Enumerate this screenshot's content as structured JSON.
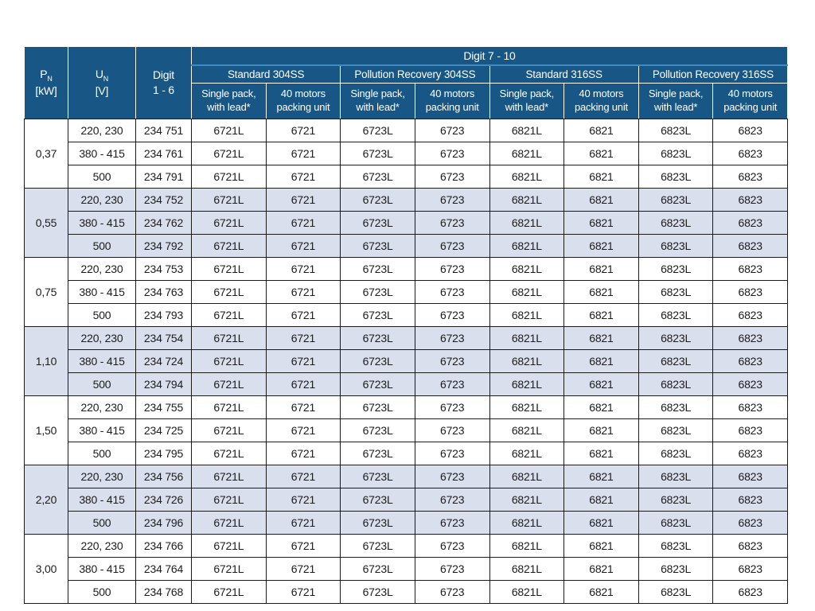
{
  "colors": {
    "header_bg": "#185685",
    "header_text": "#ffffff",
    "accent_line": "#3c8bc4",
    "row_shaded_bg": "#dadfee",
    "row_plain_bg": "#ffffff",
    "grid_border": "#1a1a1a",
    "body_text": "#1c1c1c"
  },
  "header": {
    "power": {
      "symbol": "P",
      "subscript": "N",
      "unit": "[kW]"
    },
    "voltage": {
      "symbol": "U",
      "subscript": "N",
      "unit": "[V]"
    },
    "digit_1_6": "Digit\n1 - 6",
    "digit_span": "Digit 7 - 10",
    "groups": [
      "Standard 304SS",
      "Pollution Recovery 304SS",
      "Standard 316SS",
      "Pollution Recovery 316SS"
    ],
    "subcolumns": [
      "Single pack,\nwith lead*",
      "40 motors\npacking unit"
    ]
  },
  "table": {
    "codes_per_row": [
      "6721L",
      "6721",
      "6723L",
      "6723",
      "6821L",
      "6821",
      "6823L",
      "6823"
    ],
    "groups": [
      {
        "power": "0,37",
        "rows": [
          {
            "voltage": "220, 230",
            "digit16": "234 751"
          },
          {
            "voltage": "380 - 415",
            "digit16": "234 761"
          },
          {
            "voltage": "500",
            "digit16": "234 791"
          }
        ]
      },
      {
        "power": "0,55",
        "rows": [
          {
            "voltage": "220, 230",
            "digit16": "234 752"
          },
          {
            "voltage": "380 - 415",
            "digit16": "234 762"
          },
          {
            "voltage": "500",
            "digit16": "234 792"
          }
        ]
      },
      {
        "power": "0,75",
        "rows": [
          {
            "voltage": "220, 230",
            "digit16": "234 753"
          },
          {
            "voltage": "380 - 415",
            "digit16": "234 763"
          },
          {
            "voltage": "500",
            "digit16": "234 793"
          }
        ]
      },
      {
        "power": "1,10",
        "rows": [
          {
            "voltage": "220, 230",
            "digit16": "234 754"
          },
          {
            "voltage": "380 - 415",
            "digit16": "234 724"
          },
          {
            "voltage": "500",
            "digit16": "234 794"
          }
        ]
      },
      {
        "power": "1,50",
        "rows": [
          {
            "voltage": "220, 230",
            "digit16": "234 755"
          },
          {
            "voltage": "380 - 415",
            "digit16": "234 725"
          },
          {
            "voltage": "500",
            "digit16": "234 795"
          }
        ]
      },
      {
        "power": "2,20",
        "rows": [
          {
            "voltage": "220, 230",
            "digit16": "234 756"
          },
          {
            "voltage": "380 - 415",
            "digit16": "234 726"
          },
          {
            "voltage": "500",
            "digit16": "234 796"
          }
        ]
      },
      {
        "power": "3,00",
        "rows": [
          {
            "voltage": "220, 230",
            "digit16": "234 766"
          },
          {
            "voltage": "380 - 415",
            "digit16": "234 764"
          },
          {
            "voltage": "500",
            "digit16": "234 768"
          }
        ]
      }
    ]
  }
}
